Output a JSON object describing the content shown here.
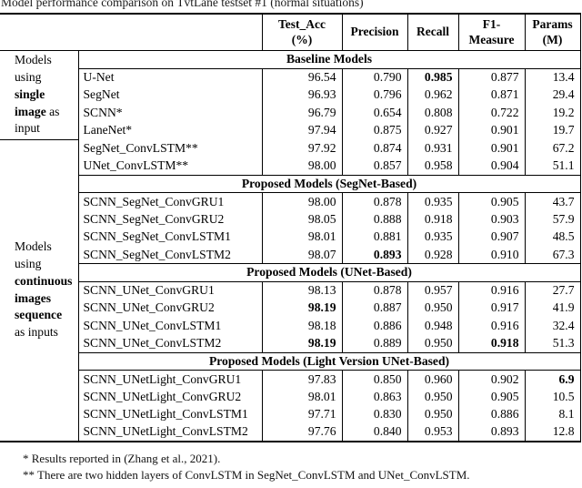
{
  "caption": "Model performance comparison on TvtLane testset #1 (normal situations)",
  "colors": {
    "border": "#000000",
    "text": "#000000",
    "background": "#ffffff"
  },
  "table": {
    "columns": [
      {
        "line1": "Test_Acc",
        "line2": "(%)"
      },
      {
        "line1": "Precision",
        "line2": ""
      },
      {
        "line1": "Recall",
        "line2": ""
      },
      {
        "line1": "F1-",
        "line2": "Measure"
      },
      {
        "line1": "Params",
        "line2": "(M)"
      }
    ],
    "col_keys": [
      "test-acc",
      "precision",
      "recall",
      "f1-measure",
      "params"
    ],
    "groups": [
      {
        "start": 0,
        "span": 5,
        "label_lines": [
          [
            {
              "text": "Models",
              "bold": false
            }
          ],
          [
            {
              "text": "using",
              "bold": false
            }
          ],
          [
            {
              "text": "single",
              "bold": true
            }
          ],
          [
            {
              "text": "image",
              "bold": true
            },
            {
              "text": " as",
              "bold": false
            }
          ],
          [
            {
              "text": "input",
              "bold": false
            }
          ]
        ]
      },
      {
        "start": 5,
        "span": 17,
        "label_lines": [
          [
            {
              "text": "Models",
              "bold": false
            }
          ],
          [
            {
              "text": "using",
              "bold": false
            }
          ],
          [
            {
              "text": "continuous",
              "bold": true
            }
          ],
          [
            {
              "text": "images",
              "bold": true
            }
          ],
          [
            {
              "text": "sequence",
              "bold": true
            }
          ],
          [
            {
              "text": "as inputs",
              "bold": false
            }
          ]
        ]
      }
    ],
    "rows": [
      {
        "type": "section",
        "text": "Baseline Models"
      },
      {
        "type": "data",
        "model": "U-Net",
        "values": [
          {
            "v": "96.54"
          },
          {
            "v": "0.790"
          },
          {
            "v": "0.985",
            "bold": true
          },
          {
            "v": "0.877"
          },
          {
            "v": "13.4"
          }
        ]
      },
      {
        "type": "data",
        "model": "SegNet",
        "values": [
          {
            "v": "96.93"
          },
          {
            "v": "0.796"
          },
          {
            "v": "0.962"
          },
          {
            "v": "0.871"
          },
          {
            "v": "29.4"
          }
        ]
      },
      {
        "type": "data",
        "model": "SCNN*",
        "values": [
          {
            "v": "96.79"
          },
          {
            "v": "0.654"
          },
          {
            "v": "0.808"
          },
          {
            "v": "0.722"
          },
          {
            "v": "19.2"
          }
        ]
      },
      {
        "type": "data",
        "model": "LaneNet*",
        "values": [
          {
            "v": "97.94"
          },
          {
            "v": "0.875"
          },
          {
            "v": "0.927"
          },
          {
            "v": "0.901"
          },
          {
            "v": "19.7"
          }
        ]
      },
      {
        "type": "data",
        "model": "SegNet_ConvLSTM**",
        "values": [
          {
            "v": "97.92"
          },
          {
            "v": "0.874"
          },
          {
            "v": "0.931"
          },
          {
            "v": "0.901"
          },
          {
            "v": "67.2"
          }
        ]
      },
      {
        "type": "data",
        "model": "UNet_ConvLSTM**",
        "values": [
          {
            "v": "98.00"
          },
          {
            "v": "0.857"
          },
          {
            "v": "0.958"
          },
          {
            "v": "0.904"
          },
          {
            "v": "51.1"
          }
        ]
      },
      {
        "type": "section",
        "text": "Proposed Models (SegNet-Based)"
      },
      {
        "type": "data",
        "model": "SCNN_SegNet_ConvGRU1",
        "values": [
          {
            "v": "98.00"
          },
          {
            "v": "0.878"
          },
          {
            "v": "0.935"
          },
          {
            "v": "0.905"
          },
          {
            "v": "43.7"
          }
        ]
      },
      {
        "type": "data",
        "model": "SCNN_SegNet_ConvGRU2",
        "values": [
          {
            "v": "98.05"
          },
          {
            "v": "0.888"
          },
          {
            "v": "0.918"
          },
          {
            "v": "0.903"
          },
          {
            "v": "57.9"
          }
        ]
      },
      {
        "type": "data",
        "model": "SCNN_SegNet_ConvLSTM1",
        "values": [
          {
            "v": "98.01"
          },
          {
            "v": "0.881"
          },
          {
            "v": "0.935"
          },
          {
            "v": "0.907"
          },
          {
            "v": "48.5"
          }
        ]
      },
      {
        "type": "data",
        "model": "SCNN_SegNet_ConvLSTM2",
        "values": [
          {
            "v": "98.07"
          },
          {
            "v": "0.893",
            "bold": true
          },
          {
            "v": "0.928"
          },
          {
            "v": "0.910"
          },
          {
            "v": "67.3"
          }
        ]
      },
      {
        "type": "section",
        "text": "Proposed Models (UNet-Based)"
      },
      {
        "type": "data",
        "model": "SCNN_UNet_ConvGRU1",
        "values": [
          {
            "v": "98.13"
          },
          {
            "v": "0.878"
          },
          {
            "v": "0.957"
          },
          {
            "v": "0.916"
          },
          {
            "v": "27.7"
          }
        ]
      },
      {
        "type": "data",
        "model": "SCNN_UNet_ConvGRU2",
        "values": [
          {
            "v": "98.19",
            "bold": true
          },
          {
            "v": "0.887"
          },
          {
            "v": "0.950"
          },
          {
            "v": "0.917"
          },
          {
            "v": "41.9"
          }
        ]
      },
      {
        "type": "data",
        "model": "SCNN_UNet_ConvLSTM1",
        "values": [
          {
            "v": "98.18"
          },
          {
            "v": "0.886"
          },
          {
            "v": "0.948"
          },
          {
            "v": "0.916"
          },
          {
            "v": "32.4"
          }
        ]
      },
      {
        "type": "data",
        "model": "SCNN_UNet_ConvLSTM2",
        "values": [
          {
            "v": "98.19",
            "bold": true
          },
          {
            "v": "0.889"
          },
          {
            "v": "0.950"
          },
          {
            "v": "0.918",
            "bold": true
          },
          {
            "v": "51.3"
          }
        ]
      },
      {
        "type": "section",
        "text": "Proposed Models (Light Version UNet-Based)"
      },
      {
        "type": "data",
        "model": "SCNN_UNetLight_ConvGRU1",
        "values": [
          {
            "v": "97.83"
          },
          {
            "v": "0.850"
          },
          {
            "v": "0.960"
          },
          {
            "v": "0.902"
          },
          {
            "v": "6.9",
            "bold": true
          }
        ]
      },
      {
        "type": "data",
        "model": "SCNN_UNetLight_ConvGRU2",
        "values": [
          {
            "v": "98.01"
          },
          {
            "v": "0.863"
          },
          {
            "v": "0.950"
          },
          {
            "v": "0.905"
          },
          {
            "v": "10.5"
          }
        ]
      },
      {
        "type": "data",
        "model": "SCNN_UNetLight_ConvLSTM1",
        "values": [
          {
            "v": "97.71"
          },
          {
            "v": "0.830"
          },
          {
            "v": "0.950"
          },
          {
            "v": "0.886"
          },
          {
            "v": "8.1"
          }
        ]
      },
      {
        "type": "data",
        "model": "SCNN_UNetLight_ConvLSTM2",
        "values": [
          {
            "v": "97.76"
          },
          {
            "v": "0.840"
          },
          {
            "v": "0.953"
          },
          {
            "v": "0.893"
          },
          {
            "v": "12.8"
          }
        ]
      }
    ]
  },
  "footnotes": [
    "* Results reported in (Zhang et al., 2021).",
    "** There are two hidden layers of ConvLSTM in SegNet_ConvLSTM and UNet_ConvLSTM."
  ],
  "chart_data": {
    "type": "table",
    "title": "Model performance comparison on TvtLane testset #1 (normal situations)",
    "columns": [
      "Model",
      "Test_Acc (%)",
      "Precision",
      "Recall",
      "F1-Measure",
      "Params (M)"
    ],
    "sections": {
      "Baseline Models": [
        [
          "U-Net",
          96.54,
          0.79,
          0.985,
          0.877,
          13.4
        ],
        [
          "SegNet",
          96.93,
          0.796,
          0.962,
          0.871,
          29.4
        ],
        [
          "SCNN*",
          96.79,
          0.654,
          0.808,
          0.722,
          19.2
        ],
        [
          "LaneNet*",
          97.94,
          0.875,
          0.927,
          0.901,
          19.7
        ],
        [
          "SegNet_ConvLSTM**",
          97.92,
          0.874,
          0.931,
          0.901,
          67.2
        ],
        [
          "UNet_ConvLSTM**",
          98.0,
          0.857,
          0.958,
          0.904,
          51.1
        ]
      ],
      "Proposed Models (SegNet-Based)": [
        [
          "SCNN_SegNet_ConvGRU1",
          98.0,
          0.878,
          0.935,
          0.905,
          43.7
        ],
        [
          "SCNN_SegNet_ConvGRU2",
          98.05,
          0.888,
          0.918,
          0.903,
          57.9
        ],
        [
          "SCNN_SegNet_ConvLSTM1",
          98.01,
          0.881,
          0.935,
          0.907,
          48.5
        ],
        [
          "SCNN_SegNet_ConvLSTM2",
          98.07,
          0.893,
          0.928,
          0.91,
          67.3
        ]
      ],
      "Proposed Models (UNet-Based)": [
        [
          "SCNN_UNet_ConvGRU1",
          98.13,
          0.878,
          0.957,
          0.916,
          27.7
        ],
        [
          "SCNN_UNet_ConvGRU2",
          98.19,
          0.887,
          0.95,
          0.917,
          41.9
        ],
        [
          "SCNN_UNet_ConvLSTM1",
          98.18,
          0.886,
          0.948,
          0.916,
          32.4
        ],
        [
          "SCNN_UNet_ConvLSTM2",
          98.19,
          0.889,
          0.95,
          0.918,
          51.3
        ]
      ],
      "Proposed Models (Light Version UNet-Based)": [
        [
          "SCNN_UNetLight_ConvGRU1",
          97.83,
          0.85,
          0.96,
          0.902,
          6.9
        ],
        [
          "SCNN_UNetLight_ConvGRU2",
          98.01,
          0.863,
          0.95,
          0.905,
          10.5
        ],
        [
          "SCNN_UNetLight_ConvLSTM1",
          97.71,
          0.83,
          0.95,
          0.886,
          8.1
        ],
        [
          "SCNN_UNetLight_ConvLSTM2",
          97.76,
          0.84,
          0.953,
          0.893,
          12.8
        ]
      ]
    }
  }
}
